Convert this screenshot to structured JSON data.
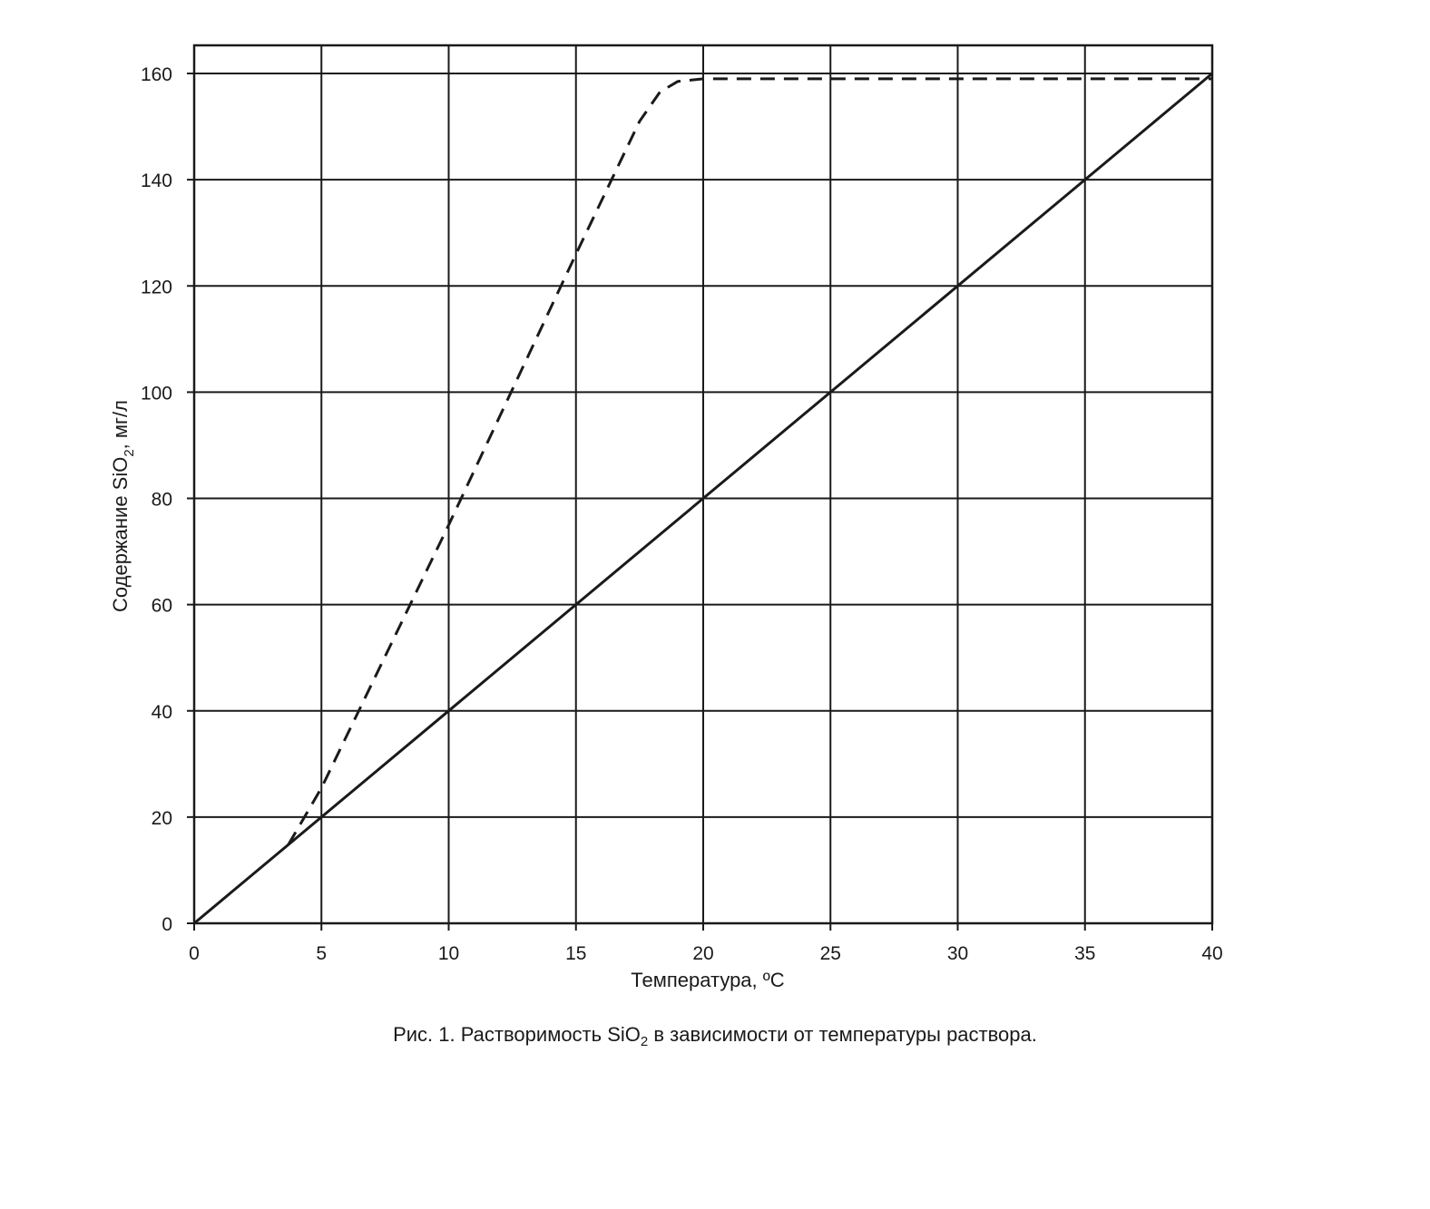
{
  "chart_data": {
    "type": "line",
    "xlabel": "Температура, ºC",
    "ylabel_parts": [
      "Содержание SiO",
      "2",
      ", мг/л"
    ],
    "xlim": [
      0,
      40
    ],
    "ylim": [
      0,
      160
    ],
    "x_ticks": [
      0,
      5,
      10,
      15,
      20,
      25,
      30,
      35,
      40
    ],
    "y_ticks": [
      0,
      20,
      40,
      60,
      80,
      100,
      120,
      140,
      160
    ],
    "grid": true,
    "series": [
      {
        "style": "solid",
        "points": [
          [
            0,
            0
          ],
          [
            40,
            160
          ]
        ]
      },
      {
        "style": "dashed",
        "points": [
          [
            3.7,
            14.8
          ],
          [
            5,
            25.5
          ],
          [
            10,
            75
          ],
          [
            15,
            126
          ],
          [
            16.5,
            141
          ],
          [
            17.5,
            151
          ],
          [
            18.3,
            156.5
          ],
          [
            19,
            158.5
          ],
          [
            20,
            159
          ],
          [
            25,
            159
          ],
          [
            30,
            159
          ],
          [
            35,
            159
          ],
          [
            40,
            159
          ]
        ]
      }
    ]
  },
  "caption": {
    "prefix": "Рис. 1. Растворимость SiO",
    "sub": "2",
    "suffix": " в зависимости от температуры раствора."
  }
}
